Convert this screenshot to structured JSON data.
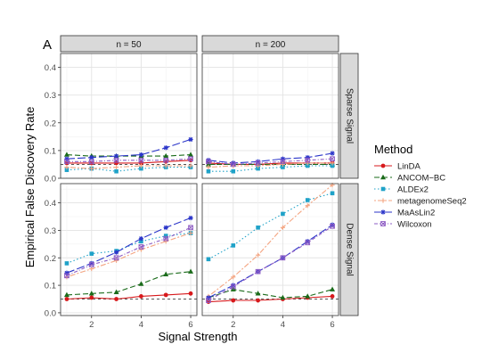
{
  "chart_data": {
    "type": "line",
    "panel_letter": "A",
    "xlabel": "Signal Strength",
    "ylabel": "Empirical False Discovery Rate",
    "legend_title": "Method",
    "legend_position": "right",
    "grid": true,
    "x": [
      1,
      2,
      3,
      4,
      5,
      6
    ],
    "xlim": [
      0.75,
      6.25
    ],
    "x_ticks": [
      2,
      4,
      6
    ],
    "ylim_top": [
      0.0,
      0.45
    ],
    "ylim_bottom": [
      -0.01,
      0.47
    ],
    "y_ticks": [
      0.0,
      0.1,
      0.2,
      0.3,
      0.4
    ],
    "reference_line": 0.05,
    "columns": [
      "n = 50",
      "n = 200"
    ],
    "rows": [
      "Sparse Signal",
      "Dense Signal"
    ],
    "methods": [
      {
        "name": "LinDA",
        "color": "#d7191c",
        "dash": "",
        "marker": "circle"
      },
      {
        "name": "ANCOM−BC",
        "color": "#1a6b1a",
        "dash": "6,3",
        "marker": "triangle"
      },
      {
        "name": "ALDEx2",
        "color": "#1fa2c8",
        "dash": "1.5,2.5",
        "marker": "square"
      },
      {
        "name": "metagenomeSeq2",
        "color": "#f4a582",
        "dash": "2,2,6,2",
        "marker": "plus"
      },
      {
        "name": "MaAsLin2",
        "color": "#2b35c9",
        "dash": "9,3",
        "marker": "star"
      },
      {
        "name": "Wilcoxon",
        "color": "#8e5cc4",
        "dash": "4,2,1,2",
        "marker": "square-x"
      }
    ],
    "panels": [
      {
        "row": 0,
        "col": 0,
        "series": [
          [
            0.055,
            0.055,
            0.055,
            0.055,
            0.06,
            0.065
          ],
          [
            0.085,
            0.08,
            0.08,
            0.08,
            0.08,
            0.085
          ],
          [
            0.03,
            0.035,
            0.025,
            0.035,
            0.04,
            0.04
          ],
          [
            0.04,
            0.035,
            0.04,
            0.045,
            0.045,
            0.045
          ],
          [
            0.07,
            0.075,
            0.08,
            0.085,
            0.11,
            0.14
          ],
          [
            0.06,
            0.06,
            0.065,
            0.065,
            0.065,
            0.07
          ]
        ]
      },
      {
        "row": 0,
        "col": 1,
        "series": [
          [
            0.055,
            0.05,
            0.05,
            0.055,
            0.055,
            0.055
          ],
          [
            0.05,
            0.05,
            0.05,
            0.05,
            0.05,
            0.05
          ],
          [
            0.025,
            0.025,
            0.035,
            0.04,
            0.045,
            0.045
          ],
          [
            0.04,
            0.045,
            0.045,
            0.05,
            0.055,
            0.055
          ],
          [
            0.065,
            0.055,
            0.06,
            0.07,
            0.075,
            0.09
          ],
          [
            0.06,
            0.05,
            0.055,
            0.06,
            0.065,
            0.07
          ]
        ]
      },
      {
        "row": 1,
        "col": 0,
        "series": [
          [
            0.05,
            0.055,
            0.05,
            0.06,
            0.065,
            0.07
          ],
          [
            0.065,
            0.07,
            0.075,
            0.105,
            0.14,
            0.15
          ],
          [
            0.18,
            0.215,
            0.225,
            0.26,
            0.28,
            0.29
          ],
          [
            0.13,
            0.16,
            0.19,
            0.23,
            0.26,
            0.29
          ],
          [
            0.145,
            0.18,
            0.22,
            0.27,
            0.31,
            0.345
          ],
          [
            0.135,
            0.175,
            0.2,
            0.24,
            0.27,
            0.31
          ]
        ]
      },
      {
        "row": 1,
        "col": 1,
        "series": [
          [
            0.04,
            0.045,
            0.045,
            0.05,
            0.055,
            0.06
          ],
          [
            0.055,
            0.085,
            0.07,
            0.055,
            0.06,
            0.085
          ],
          [
            0.195,
            0.245,
            0.31,
            0.36,
            0.41,
            0.435
          ],
          [
            0.06,
            0.13,
            0.21,
            0.31,
            0.39,
            0.465
          ],
          [
            0.055,
            0.1,
            0.15,
            0.2,
            0.26,
            0.32
          ],
          [
            0.045,
            0.095,
            0.15,
            0.2,
            0.255,
            0.315
          ]
        ]
      }
    ]
  }
}
